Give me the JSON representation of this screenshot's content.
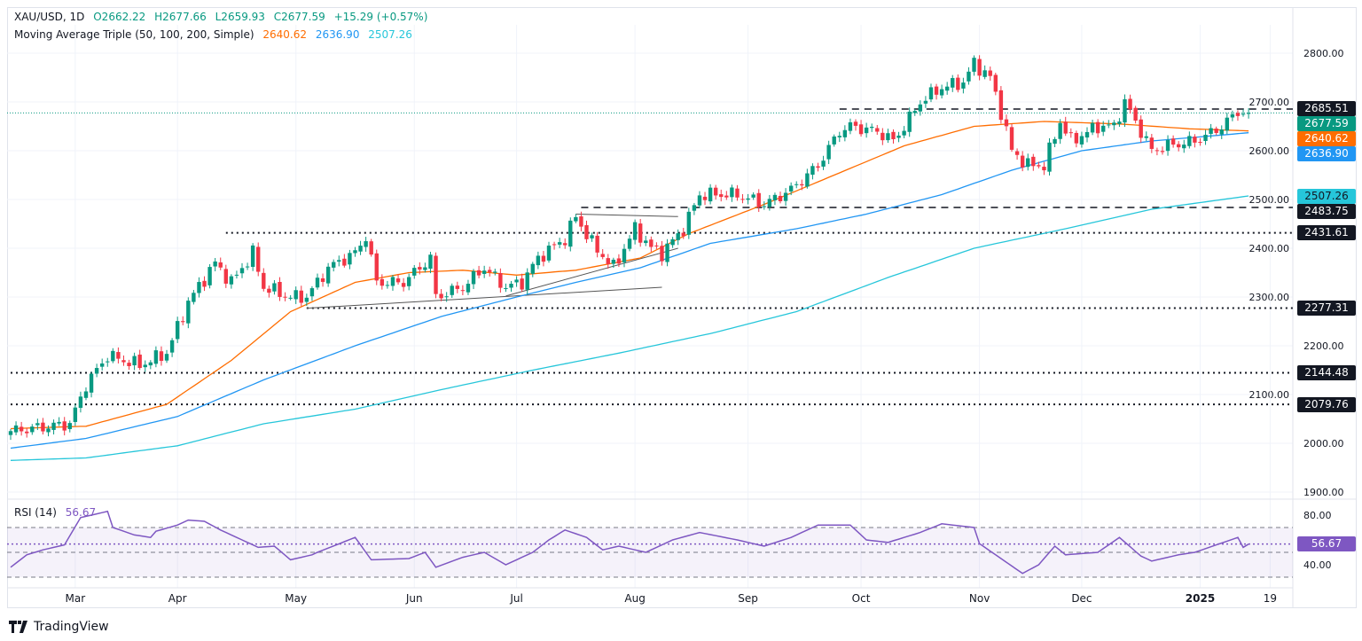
{
  "header": {
    "symbol": "XAU/USD, 1D",
    "open": "O2662.22",
    "high": "H2677.66",
    "low": "L2659.93",
    "close": "C2677.59",
    "change": "+15.29 (+0.57%)",
    "ma_label": "Moving Average Triple (50, 100, 200, Simple)",
    "ma50": "2640.62",
    "ma100": "2636.90",
    "ma200": "2507.26"
  },
  "rsi_legend": {
    "label": "RSI (14)",
    "value": "56.67"
  },
  "branding": "TradingView",
  "colors": {
    "up": "#089981",
    "down": "#f23645",
    "ma50": "#ff6d00",
    "ma100": "#2196f3",
    "ma200": "#26c6da",
    "rsi": "#7e57c2",
    "level": "#131722"
  },
  "chart_data": {
    "type": "candlestick",
    "title": "XAU/USD, 1D",
    "bars": 231,
    "ylim": [
      1880,
      2840
    ],
    "y_ticks": [
      "1900.00",
      "2000.00",
      "2100.00",
      "2200.00",
      "2300.00",
      "2400.00",
      "2500.00",
      "2600.00",
      "2700.00",
      "2800.00"
    ],
    "x_ticks": [
      {
        "label": "Mar",
        "bar": 12
      },
      {
        "label": "Apr",
        "bar": 31
      },
      {
        "label": "May",
        "bar": 53
      },
      {
        "label": "Jun",
        "bar": 75
      },
      {
        "label": "Jul",
        "bar": 94
      },
      {
        "label": "Aug",
        "bar": 116
      },
      {
        "label": "Sep",
        "bar": 137
      },
      {
        "label": "Oct",
        "bar": 158
      },
      {
        "label": "Nov",
        "bar": 180
      },
      {
        "label": "Dec",
        "bar": 199
      },
      {
        "label": "2025",
        "bar": 221
      },
      {
        "label": "19",
        "bar": 234
      }
    ],
    "close_keypoints": [
      [
        0,
        2025
      ],
      [
        11,
        2040
      ],
      [
        14,
        2120
      ],
      [
        18,
        2180
      ],
      [
        24,
        2160
      ],
      [
        29,
        2185
      ],
      [
        33,
        2290
      ],
      [
        38,
        2370
      ],
      [
        41,
        2330
      ],
      [
        45,
        2390
      ],
      [
        47,
        2320
      ],
      [
        52,
        2300
      ],
      [
        55,
        2300
      ],
      [
        59,
        2360
      ],
      [
        64,
        2390
      ],
      [
        66,
        2425
      ],
      [
        68,
        2330
      ],
      [
        73,
        2330
      ],
      [
        78,
        2380
      ],
      [
        79,
        2300
      ],
      [
        84,
        2320
      ],
      [
        88,
        2360
      ],
      [
        92,
        2320
      ],
      [
        95,
        2330
      ],
      [
        98,
        2380
      ],
      [
        103,
        2420
      ],
      [
        105,
        2465
      ],
      [
        108,
        2410
      ],
      [
        112,
        2360
      ],
      [
        116,
        2440
      ],
      [
        119,
        2400
      ],
      [
        121,
        2390
      ],
      [
        125,
        2440
      ],
      [
        128,
        2510
      ],
      [
        135,
        2510
      ],
      [
        140,
        2490
      ],
      [
        145,
        2520
      ],
      [
        150,
        2570
      ],
      [
        154,
        2640
      ],
      [
        156,
        2650
      ],
      [
        161,
        2640
      ],
      [
        164,
        2620
      ],
      [
        166,
        2650
      ],
      [
        169,
        2700
      ],
      [
        173,
        2730
      ],
      [
        177,
        2740
      ],
      [
        179,
        2780
      ],
      [
        182,
        2750
      ],
      [
        184,
        2680
      ],
      [
        186,
        2600
      ],
      [
        189,
        2570
      ],
      [
        192,
        2570
      ],
      [
        195,
        2660
      ],
      [
        197,
        2620
      ],
      [
        202,
        2650
      ],
      [
        205,
        2650
      ],
      [
        207,
        2700
      ],
      [
        210,
        2640
      ],
      [
        212,
        2600
      ],
      [
        215,
        2610
      ],
      [
        220,
        2620
      ],
      [
        222,
        2630
      ],
      [
        225,
        2650
      ],
      [
        228,
        2680
      ],
      [
        230,
        2677.59
      ]
    ],
    "series": [
      {
        "name": "MA 50",
        "value": "2640.62",
        "keypoints": [
          [
            0,
            2030
          ],
          [
            14,
            2035
          ],
          [
            29,
            2080
          ],
          [
            41,
            2170
          ],
          [
            52,
            2270
          ],
          [
            64,
            2330
          ],
          [
            74,
            2350
          ],
          [
            84,
            2355
          ],
          [
            94,
            2345
          ],
          [
            105,
            2355
          ],
          [
            117,
            2380
          ],
          [
            126,
            2430
          ],
          [
            140,
            2490
          ],
          [
            153,
            2550
          ],
          [
            166,
            2610
          ],
          [
            179,
            2650
          ],
          [
            192,
            2660
          ],
          [
            206,
            2655
          ],
          [
            219,
            2645
          ],
          [
            230,
            2640.62
          ]
        ]
      },
      {
        "name": "MA 100",
        "value": "2636.90",
        "keypoints": [
          [
            0,
            1990
          ],
          [
            14,
            2010
          ],
          [
            31,
            2055
          ],
          [
            47,
            2130
          ],
          [
            64,
            2200
          ],
          [
            80,
            2260
          ],
          [
            94,
            2300
          ],
          [
            105,
            2330
          ],
          [
            117,
            2360
          ],
          [
            130,
            2410
          ],
          [
            146,
            2440
          ],
          [
            159,
            2470
          ],
          [
            173,
            2510
          ],
          [
            186,
            2560
          ],
          [
            199,
            2600
          ],
          [
            212,
            2620
          ],
          [
            230,
            2636.9
          ]
        ]
      },
      {
        "name": "MA 200",
        "value": "2507.26",
        "keypoints": [
          [
            0,
            1965
          ],
          [
            14,
            1970
          ],
          [
            31,
            1995
          ],
          [
            47,
            2040
          ],
          [
            64,
            2070
          ],
          [
            80,
            2110
          ],
          [
            97,
            2150
          ],
          [
            113,
            2185
          ],
          [
            130,
            2225
          ],
          [
            146,
            2270
          ],
          [
            163,
            2340
          ],
          [
            179,
            2400
          ],
          [
            196,
            2440
          ],
          [
            212,
            2480
          ],
          [
            230,
            2507.26
          ]
        ]
      }
    ],
    "levels": [
      {
        "value": 2685.51,
        "label": "2685.51",
        "style": "dashed",
        "from_bar": 154
      },
      {
        "value": 2483.75,
        "label": "2483.75",
        "style": "dashed",
        "from_bar": 106
      },
      {
        "value": 2431.61,
        "label": "2431.61",
        "style": "dotted",
        "from_bar": 40
      },
      {
        "value": 2277.31,
        "label": "2277.31",
        "style": "dotted",
        "from_bar": 55
      },
      {
        "value": 2144.48,
        "label": "2144.48",
        "style": "dotted",
        "from_bar": 0
      },
      {
        "value": 2079.76,
        "label": "2079.76",
        "style": "dotted",
        "from_bar": 0
      }
    ],
    "last_price": {
      "value": 2677.59,
      "label": "2677.59"
    },
    "trendlines": [
      [
        [
          55,
          2277
        ],
        [
          121,
          2320
        ]
      ],
      [
        [
          92,
          2302
        ],
        [
          124,
          2400
        ]
      ],
      [
        [
          105,
          2470
        ],
        [
          124,
          2465
        ]
      ]
    ],
    "rsi": {
      "ylim": [
        20,
        92
      ],
      "ticks": [
        "80.00",
        "40.00"
      ],
      "bands": [
        70,
        50,
        30
      ],
      "current": {
        "value": 56.67,
        "label": "56.67"
      },
      "keypoints": [
        [
          0,
          38
        ],
        [
          3,
          48
        ],
        [
          6,
          52
        ],
        [
          10,
          56
        ],
        [
          13,
          78
        ],
        [
          18,
          83
        ],
        [
          19,
          70
        ],
        [
          23,
          64
        ],
        [
          26,
          62
        ],
        [
          27,
          67
        ],
        [
          31,
          72
        ],
        [
          33,
          76
        ],
        [
          36,
          75
        ],
        [
          39,
          68
        ],
        [
          46,
          54
        ],
        [
          49,
          55
        ],
        [
          52,
          44
        ],
        [
          56,
          48
        ],
        [
          57,
          50
        ],
        [
          64,
          62
        ],
        [
          67,
          44
        ],
        [
          74,
          45
        ],
        [
          77,
          50
        ],
        [
          79,
          38
        ],
        [
          84,
          46
        ],
        [
          88,
          50
        ],
        [
          92,
          40
        ],
        [
          97,
          50
        ],
        [
          100,
          60
        ],
        [
          103,
          68
        ],
        [
          107,
          62
        ],
        [
          110,
          52
        ],
        [
          113,
          55
        ],
        [
          118,
          50
        ],
        [
          123,
          60
        ],
        [
          128,
          66
        ],
        [
          135,
          60
        ],
        [
          140,
          55
        ],
        [
          145,
          62
        ],
        [
          150,
          72
        ],
        [
          156,
          72
        ],
        [
          159,
          60
        ],
        [
          163,
          58
        ],
        [
          169,
          66
        ],
        [
          173,
          73
        ],
        [
          179,
          70
        ],
        [
          180,
          57
        ],
        [
          184,
          45
        ],
        [
          188,
          33
        ],
        [
          191,
          40
        ],
        [
          194,
          55
        ],
        [
          196,
          48
        ],
        [
          202,
          50
        ],
        [
          206,
          62
        ],
        [
          210,
          47
        ],
        [
          212,
          43
        ],
        [
          217,
          48
        ],
        [
          220,
          50
        ],
        [
          224,
          56
        ],
        [
          228,
          62
        ],
        [
          229,
          54
        ],
        [
          230,
          56.67
        ]
      ]
    }
  }
}
